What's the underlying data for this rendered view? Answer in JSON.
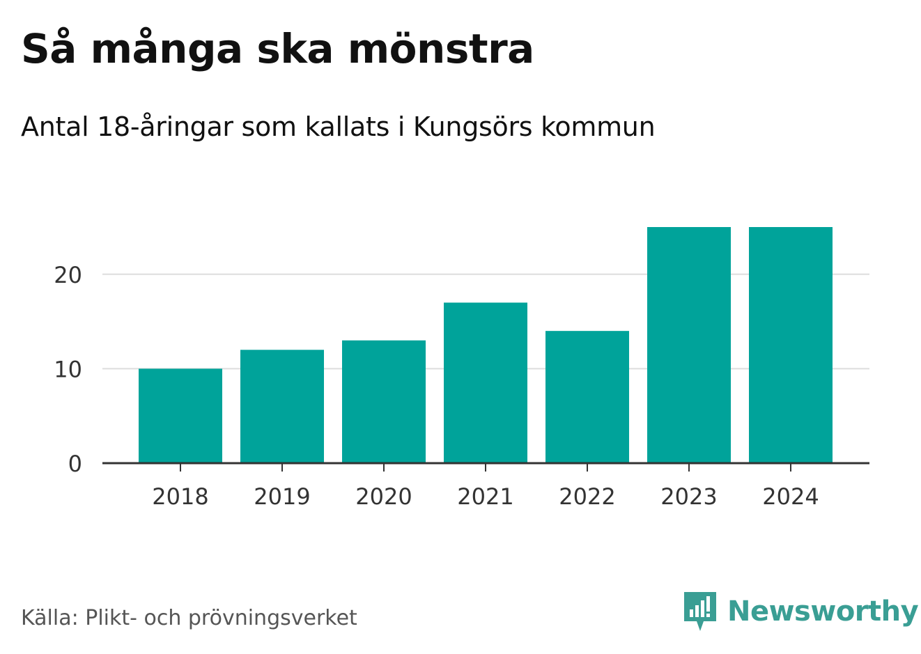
{
  "chart_data": {
    "type": "bar",
    "title": "Så många ska mönstra",
    "subtitle": "Antal 18-åringar som kallats i Kungsörs kommun",
    "categories": [
      "2018",
      "2019",
      "2020",
      "2021",
      "2022",
      "2023",
      "2024"
    ],
    "values": [
      10,
      12,
      13,
      17,
      14,
      25,
      25
    ],
    "ylim": [
      0,
      25
    ],
    "yticks": [
      0,
      10,
      20
    ],
    "xlabel": "",
    "ylabel": "",
    "grid": true,
    "bar_color": "#00a39a"
  },
  "footer": {
    "source": "Källa: Plikt- och prövningsverket",
    "brand": "Newsworthy"
  },
  "colors": {
    "bar": "#00a39a",
    "brand": "#3a9e94",
    "grid": "#dddddd",
    "axis": "#333333"
  }
}
